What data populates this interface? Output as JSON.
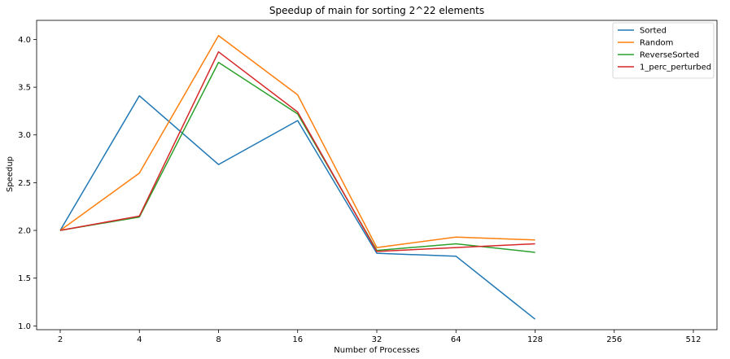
{
  "chart_data": {
    "type": "line",
    "title": "Speedup of main for sorting 2^22 elements",
    "xlabel": "Number of Processes",
    "ylabel": "Speedup",
    "x_scale": "log2",
    "x_ticks": [
      2,
      4,
      8,
      16,
      32,
      64,
      128,
      256,
      512
    ],
    "x_tick_labels": [
      "2",
      "4",
      "8",
      "16",
      "32",
      "64",
      "128",
      "256",
      "512"
    ],
    "xlim": [
      2,
      512
    ],
    "y_ticks": [
      1.0,
      1.5,
      2.0,
      2.5,
      3.0,
      3.5,
      4.0
    ],
    "y_tick_labels": [
      "1.0",
      "1.5",
      "2.0",
      "2.5",
      "3.0",
      "3.5",
      "4.0"
    ],
    "ylim": [
      0.96,
      4.2
    ],
    "grid": false,
    "legend_position": "top-right",
    "x": [
      2,
      4,
      8,
      16,
      32,
      64,
      128
    ],
    "series": [
      {
        "name": "Sorted",
        "color": "#1f77b4",
        "values": [
          2.0,
          3.41,
          2.69,
          3.15,
          1.76,
          1.73,
          1.07
        ]
      },
      {
        "name": "Random",
        "color": "#ff7f0e",
        "values": [
          2.0,
          2.6,
          4.04,
          3.42,
          1.82,
          1.93,
          1.9
        ]
      },
      {
        "name": "ReverseSorted",
        "color": "#2ca02c",
        "values": [
          2.0,
          2.14,
          3.76,
          3.22,
          1.79,
          1.86,
          1.77
        ]
      },
      {
        "name": "1_perc_perturbed",
        "color": "#d62728",
        "values": [
          2.0,
          2.15,
          3.87,
          3.24,
          1.78,
          1.82,
          1.86
        ]
      }
    ]
  }
}
